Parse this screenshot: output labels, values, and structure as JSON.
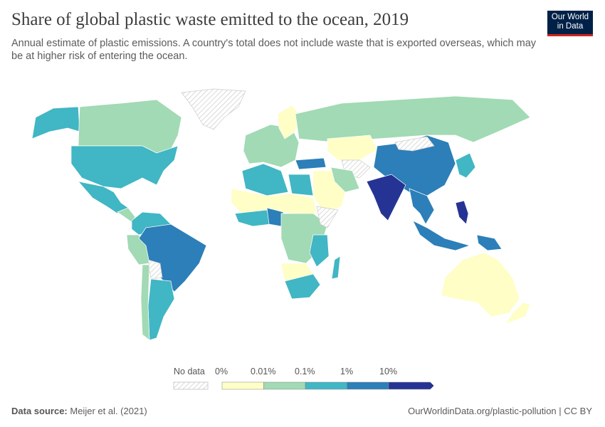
{
  "header": {
    "title": "Share of global plastic waste emitted to the ocean, 2019",
    "subtitle": "Annual estimate of plastic emissions. A country's total does not include waste that is exported overseas, which may be at higher risk of entering the ocean.",
    "logo": "Our World in Data"
  },
  "legend": {
    "no_data_label": "No data",
    "bins": [
      "0%",
      "0.01%",
      "0.1%",
      "1%",
      "10%"
    ],
    "colors": [
      "#fefec6",
      "#a1dab4",
      "#41b6c4",
      "#2c7fb8",
      "#253494"
    ],
    "no_data_color": "hatched-grey"
  },
  "footer": {
    "source_label": "Data source:",
    "source": "Meijer et al. (2021)",
    "url": "OurWorldinData.org/plastic-pollution | CC BY"
  }
}
